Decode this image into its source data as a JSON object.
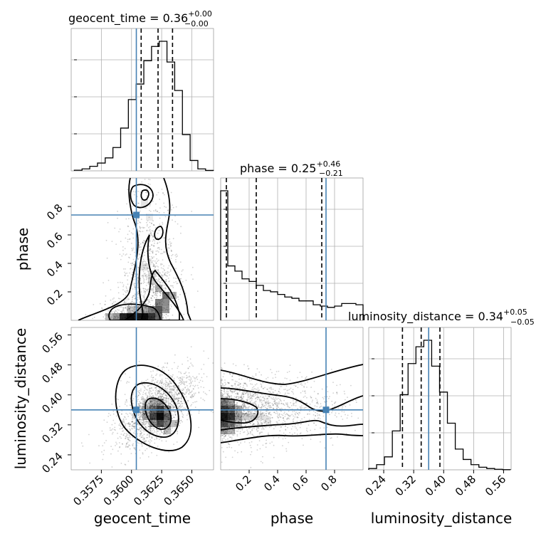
{
  "chart_data": {
    "type": "corner",
    "parameters": [
      "geocent_time",
      "phase",
      "luminosity_distance"
    ],
    "truths": {
      "geocent_time": 0.3604,
      "phase": 0.74,
      "luminosity_distance": 0.36
    },
    "accent_color": "#4682b4",
    "grid": true,
    "panels": [
      {
        "kind": "hist1d",
        "param": "geocent_time",
        "title": {
          "prefix": "geocent_time = 0.36",
          "sup": "+0.00",
          "sub": "−0.00"
        },
        "xlim": [
          0.355,
          0.3668
        ],
        "bins": [
          0.35526,
          0.3559,
          0.35654,
          0.35718,
          0.35782,
          0.35846,
          0.3591,
          0.35974,
          0.36038,
          0.36102,
          0.36166,
          0.3623,
          0.36294,
          0.36358,
          0.36422,
          0.36486,
          0.3655,
          0.36614,
          0.36678
        ],
        "counts": [
          0.5,
          1.5,
          3.5,
          6,
          10,
          18,
          33,
          55,
          67,
          85,
          96,
          100,
          84,
          62,
          28,
          8,
          1.5,
          0.3
        ],
        "quantiles": [
          0.3608,
          0.3622,
          0.3634
        ]
      },
      {
        "kind": "hist1d",
        "param": "phase",
        "title": {
          "prefix": "phase = 0.25",
          "sup": "+0.46",
          "sub": "−0.21"
        },
        "xlim": [
          0.0,
          1.0
        ],
        "bins": [
          0.0,
          0.05,
          0.1,
          0.15,
          0.2,
          0.25,
          0.3,
          0.35,
          0.4,
          0.45,
          0.5,
          0.55,
          0.6,
          0.65,
          0.7,
          0.75,
          0.8,
          0.85,
          0.9,
          0.95,
          1.0
        ],
        "counts": [
          100,
          42,
          38,
          32,
          30,
          27,
          23,
          22,
          20,
          18,
          17,
          15,
          15,
          12,
          11,
          10,
          11,
          13,
          13,
          12
        ],
        "quantiles": [
          0.04,
          0.25,
          0.71
        ]
      },
      {
        "kind": "hist1d",
        "param": "luminosity_distance",
        "title": {
          "prefix": "luminosity_distance = 0.34",
          "sup": "+0.05",
          "sub": "−0.05"
        },
        "xlim": [
          0.2,
          0.58
        ],
        "bins": [
          0.2,
          0.221,
          0.242,
          0.263,
          0.284,
          0.305,
          0.326,
          0.347,
          0.368,
          0.389,
          0.41,
          0.431,
          0.452,
          0.473,
          0.494,
          0.515,
          0.536,
          0.557,
          0.578
        ],
        "counts": [
          1,
          4,
          10,
          30,
          58,
          82,
          95,
          100,
          80,
          60,
          36,
          16,
          8,
          4,
          2,
          1,
          0.4,
          0.1
        ],
        "quantiles": [
          0.29,
          0.34,
          0.39
        ]
      },
      {
        "kind": "contour2d",
        "x": "geocent_time",
        "y": "phase",
        "xlim": [
          0.355,
          0.3668
        ],
        "ylim": [
          0.0,
          1.0
        ],
        "xticks": [
          0.3575,
          0.36,
          0.3625,
          0.365
        ],
        "xticklabels": [
          "0.3575",
          "0.3600",
          "0.3625",
          "0.3650"
        ],
        "yticks": [
          0.2,
          0.4,
          0.6,
          0.8
        ],
        "yticklabels": [
          "0.2",
          "0.4",
          "0.6",
          "0.8"
        ],
        "ylabel": "phase"
      },
      {
        "kind": "contour2d",
        "x": "geocent_time",
        "y": "luminosity_distance",
        "xlim": [
          0.355,
          0.3668
        ],
        "ylim": [
          0.2,
          0.58
        ],
        "xticks": [
          0.3575,
          0.36,
          0.3625,
          0.365
        ],
        "xticklabels": [
          "0.3575",
          "0.3600",
          "0.3625",
          "0.3650"
        ],
        "yticks": [
          0.24,
          0.32,
          0.4,
          0.48,
          0.56
        ],
        "yticklabels": [
          "0.24",
          "0.32",
          "0.40",
          "0.48",
          "0.56"
        ],
        "xlabel": "geocent_time",
        "ylabel": "luminosity_distance"
      },
      {
        "kind": "contour2d",
        "x": "phase",
        "y": "luminosity_distance",
        "xlim": [
          0.0,
          1.0
        ],
        "ylim": [
          0.2,
          0.58
        ],
        "xticks": [
          0.2,
          0.4,
          0.6,
          0.8
        ],
        "xticklabels": [
          "0.2",
          "0.4",
          "0.6",
          "0.8"
        ],
        "xlabel": "phase"
      },
      {
        "kind": "hist1d_axis",
        "param": "luminosity_distance",
        "xticks": [
          0.24,
          0.32,
          0.4,
          0.48,
          0.56
        ],
        "xticklabels": [
          "0.24",
          "0.32",
          "0.40",
          "0.48",
          "0.56"
        ],
        "xlabel": "luminosity_distance"
      }
    ]
  }
}
